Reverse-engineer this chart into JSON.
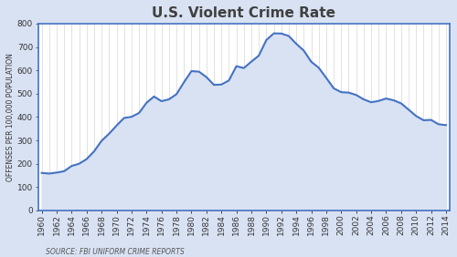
{
  "title": "U.S. Violent Crime Rate",
  "ylabel": "OFFENSES PER 100,000 POPULATION",
  "source": "SOURCE: FBI UNIFORM CRIME REPORTS",
  "years": [
    1960,
    1961,
    1962,
    1963,
    1964,
    1965,
    1966,
    1967,
    1968,
    1969,
    1970,
    1971,
    1972,
    1973,
    1974,
    1975,
    1976,
    1977,
    1978,
    1979,
    1980,
    1981,
    1982,
    1983,
    1984,
    1985,
    1986,
    1987,
    1988,
    1989,
    1990,
    1991,
    1992,
    1993,
    1994,
    1995,
    1996,
    1997,
    1998,
    1999,
    2000,
    2001,
    2002,
    2003,
    2004,
    2005,
    2006,
    2007,
    2008,
    2009,
    2010,
    2011,
    2012,
    2013,
    2014
  ],
  "values": [
    160.9,
    158.1,
    162.3,
    168.2,
    190.6,
    200.2,
    220.0,
    253.2,
    298.4,
    328.7,
    363.5,
    396.0,
    401.0,
    417.4,
    461.1,
    487.8,
    467.8,
    475.9,
    497.8,
    548.9,
    596.6,
    594.3,
    571.1,
    537.7,
    539.2,
    556.6,
    617.7,
    609.7,
    637.2,
    663.1,
    729.6,
    758.1,
    757.5,
    746.8,
    713.6,
    684.5,
    636.6,
    611.0,
    567.6,
    523.0,
    506.5,
    504.5,
    494.4,
    475.8,
    463.2,
    469.0,
    479.3,
    471.8,
    458.6,
    431.9,
    404.5,
    386.3,
    387.8,
    369.1,
    365.5
  ],
  "ylim": [
    0,
    800
  ],
  "yticks": [
    0,
    100,
    200,
    300,
    400,
    500,
    600,
    700,
    800
  ],
  "line_color": "#4472C4",
  "fill_color": "#D9E2F3",
  "background_color": "#D9E2F3",
  "plot_bg_color": "#FFFFFF",
  "border_color": "#4472C4",
  "title_fontsize": 11,
  "label_fontsize": 5.5,
  "source_fontsize": 5.5,
  "tick_fontsize": 6.5,
  "line_width": 1.5
}
